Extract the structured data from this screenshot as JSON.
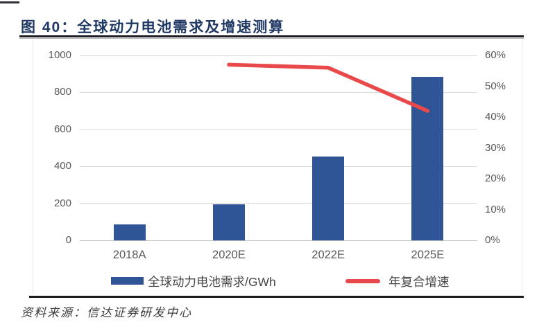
{
  "figure": {
    "title": "图 40：全球动力电池需求及增速测算",
    "source": "资料来源：信达证券研发中心"
  },
  "legend": [
    {
      "label": "全球动力电池需求/GWh",
      "type": "bar",
      "color": "#2F5597"
    },
    {
      "label": "年复合增速",
      "type": "line",
      "color": "#E9494B"
    }
  ],
  "colors": {
    "title_navy": "#1F3864",
    "bar_blue": "#2F5597",
    "line_red": "#E9494B",
    "axis_text_gray": "#595959",
    "gridline_gray": "#dadada",
    "baseline_gray": "#bfbfbf"
  },
  "chart_data": {
    "type": "bar",
    "subtype": "bar+line combo, dual axis",
    "title": "全球动力电池需求及增速测算",
    "categories": [
      "2018A",
      "2020E",
      "2022E",
      "2025E"
    ],
    "series": [
      {
        "name": "全球动力电池需求/GWh",
        "type": "bar",
        "axis": "left",
        "values": [
          85,
          195,
          455,
          885
        ],
        "unit": "GWh",
        "color": "#2F5597"
      },
      {
        "name": "年复合增速",
        "type": "line",
        "axis": "right",
        "values": [
          null,
          57,
          56,
          42
        ],
        "unit": "%",
        "color": "#E9494B"
      }
    ],
    "left_axis": {
      "min": 0,
      "max": 1000,
      "step": 200,
      "ticks": [
        "0",
        "200",
        "400",
        "600",
        "800",
        "1000"
      ]
    },
    "right_axis": {
      "min": 0,
      "max": 60,
      "step": 10,
      "ticks": [
        "0%",
        "10%",
        "20%",
        "30%",
        "40%",
        "50%",
        "60%"
      ]
    },
    "grid": true,
    "legend_position": "bottom",
    "xlabel": "",
    "ylabel_left": "GWh",
    "ylabel_right": "%"
  }
}
